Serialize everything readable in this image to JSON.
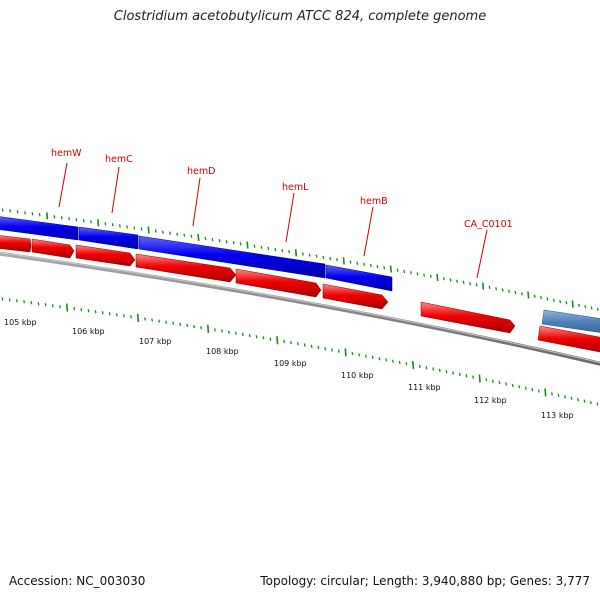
{
  "title": "Clostridium acetobutylicum ATCC 824, complete genome",
  "footer": {
    "accession": "Accession: NC_003030",
    "summary": "Topology: circular; Length: 3,940,880 bp; Genes: 3,777"
  },
  "colors": {
    "gene_label": "#cc0000",
    "forward_feature": "#0000ee",
    "cds": "#ee0000",
    "other_feature": "#5080b8",
    "tick": "#1a8a1a",
    "backbone": "#808080"
  },
  "gene_labels": [
    {
      "id": "hemW",
      "text": "hemW"
    },
    {
      "id": "hemC",
      "text": "hemC"
    },
    {
      "id": "hemD",
      "text": "hemD"
    },
    {
      "id": "hemL",
      "text": "hemL"
    },
    {
      "id": "hemB",
      "text": "hemB"
    },
    {
      "id": "ca-c0101",
      "text": "CA_C0101"
    }
  ],
  "kbp_labels": [
    "105 kbp",
    "106 kbp",
    "107 kbp",
    "108 kbp",
    "109 kbp",
    "110 kbp",
    "111 kbp",
    "112 kbp",
    "113 kbp"
  ]
}
